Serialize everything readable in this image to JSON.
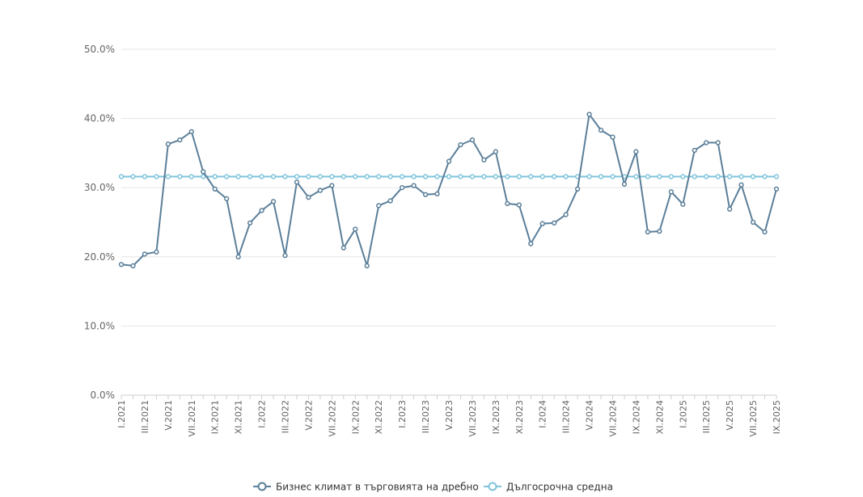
{
  "chart_data": {
    "type": "line",
    "ylim": [
      0,
      50
    ],
    "y_ticks": [
      0,
      10,
      20,
      30,
      40,
      50
    ],
    "y_tick_labels": [
      "0.0%",
      "10.0%",
      "20.0%",
      "30.0%",
      "40.0%",
      "50.0%"
    ],
    "grid": true,
    "legend_position": "bottom-center",
    "categories": [
      "I.2021",
      "II.2021",
      "III.2021",
      "IV.2021",
      "V.2021",
      "VI.2021",
      "VII.2021",
      "VIII.2021",
      "IX.2021",
      "X.2021",
      "XI.2021",
      "XII.2021",
      "I.2022",
      "II.2022",
      "III.2022",
      "IV.2022",
      "V.2022",
      "VI.2022",
      "VII.2022",
      "VIII.2022",
      "IX.2022",
      "X.2022",
      "XI.2022",
      "XII.2022",
      "I.2023",
      "II.2023",
      "III.2023",
      "IV.2023",
      "V.2023",
      "VI.2023",
      "VII.2023",
      "VIII.2023",
      "IX.2023",
      "X.2023",
      "XI.2023",
      "XII.2023",
      "I.2024",
      "II.2024",
      "III.2024",
      "IV.2024",
      "V.2024",
      "VI.2024",
      "VII.2024",
      "VIII.2024",
      "IX.2024",
      "X.2024",
      "XI.2024",
      "XII.2024",
      "I.2025",
      "II.2025",
      "III.2025",
      "IV.2025",
      "V.2025",
      "VI.2025",
      "VII.2025",
      "VIII.2025",
      "IX.2025"
    ],
    "category_labels_shown": [
      "I.2021",
      "",
      "III.2021",
      "",
      "V.2021",
      "",
      "VII.2021",
      "",
      "IX.2021",
      "",
      "XI.2021",
      "",
      "I.2022",
      "",
      "III.2022",
      "",
      "V.2022",
      "",
      "VII.2022",
      "",
      "IX.2022",
      "",
      "XI.2022",
      "",
      "I.2023",
      "",
      "III.2023",
      "",
      "V.2023",
      "",
      "VII.2023",
      "",
      "IX.2023",
      "",
      "XI.2023",
      "",
      "I.2024",
      "",
      "III.2024",
      "",
      "V.2024",
      "",
      "VII.2024",
      "",
      "IX.2024",
      "",
      "XI.2024",
      "",
      "I.2025",
      "",
      "III.2025",
      "",
      "V.2025",
      "",
      "VII.2025",
      "",
      "IX.2025"
    ],
    "series": [
      {
        "name": "Бизнес климат в търговията на дребно",
        "color": "#5b7f99",
        "values": [
          18.9,
          18.7,
          20.4,
          20.7,
          36.3,
          36.9,
          38.1,
          32.3,
          29.8,
          28.4,
          20.0,
          24.9,
          26.7,
          28.0,
          20.2,
          30.8,
          28.6,
          29.6,
          30.3,
          21.3,
          24.0,
          18.7,
          27.4,
          28.1,
          30.0,
          30.3,
          29.0,
          29.1,
          33.8,
          36.2,
          36.9,
          34.0,
          35.2,
          27.7,
          27.5,
          21.9,
          24.8,
          24.9,
          26.1,
          29.8,
          40.6,
          38.3,
          37.3,
          30.5,
          35.2,
          23.6,
          23.7,
          29.4,
          27.6,
          35.4,
          36.5,
          36.5,
          26.9,
          30.4,
          25.0,
          23.6,
          29.8
        ]
      },
      {
        "name": "Дългосрочна средна",
        "color": "#7ec3dc",
        "constant": 31.6
      }
    ]
  }
}
